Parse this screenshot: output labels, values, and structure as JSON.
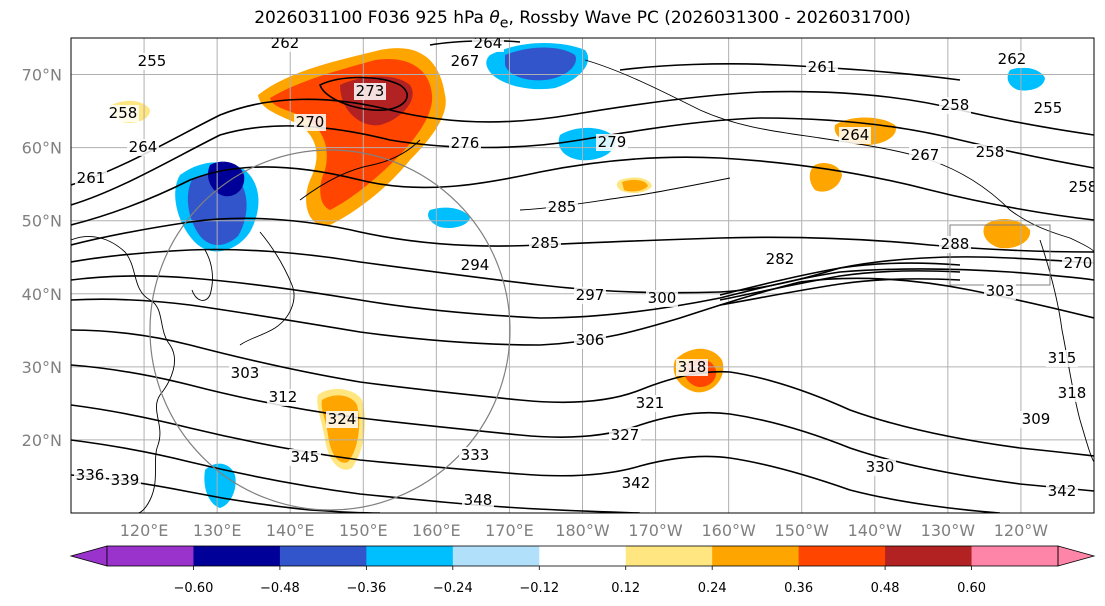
{
  "title": {
    "prefix": "2026031100 F036 925 hPa ",
    "theta": "θ",
    "theta_sub": "e",
    "suffix": ", Rossby Wave PC (2026031300 - 2026031700)"
  },
  "map": {
    "lat_labels": [
      "70°N",
      "60°N",
      "50°N",
      "40°N",
      "30°N",
      "20°N"
    ],
    "lon_labels": [
      "120°E",
      "130°E",
      "140°E",
      "150°E",
      "160°E",
      "170°E",
      "180°W",
      "170°W",
      "160°W",
      "150°W",
      "140°W",
      "130°W",
      "120°W"
    ],
    "contour_labels": [
      "264",
      "267",
      "262",
      "255",
      "258",
      "264",
      "261",
      "273",
      "270",
      "276",
      "279",
      "261",
      "262",
      "258",
      "258",
      "255",
      "267",
      "264",
      "258",
      "270",
      "285",
      "285",
      "294",
      "282",
      "288",
      "297",
      "300",
      "306",
      "303",
      "303",
      "312",
      "318",
      "321",
      "327",
      "330",
      "333",
      "336",
      "339",
      "342",
      "345",
      "348",
      "324",
      "315",
      "318",
      "309",
      "342"
    ]
  },
  "colorbar": {
    "ticks": [
      "−0.60",
      "−0.48",
      "−0.36",
      "−0.24",
      "−0.12",
      "0.12",
      "0.24",
      "0.36",
      "0.48",
      "0.60"
    ],
    "colors": {
      "under": "#9933cc",
      "bins": [
        "#9933cc",
        "#000099",
        "#3355cc",
        "#00bfff",
        "#b0e0fa",
        "#ffffff",
        "#ffe680",
        "#ffa500",
        "#ff4500",
        "#b22222",
        "#ff85a8"
      ],
      "over": "#ff85a8"
    }
  }
}
